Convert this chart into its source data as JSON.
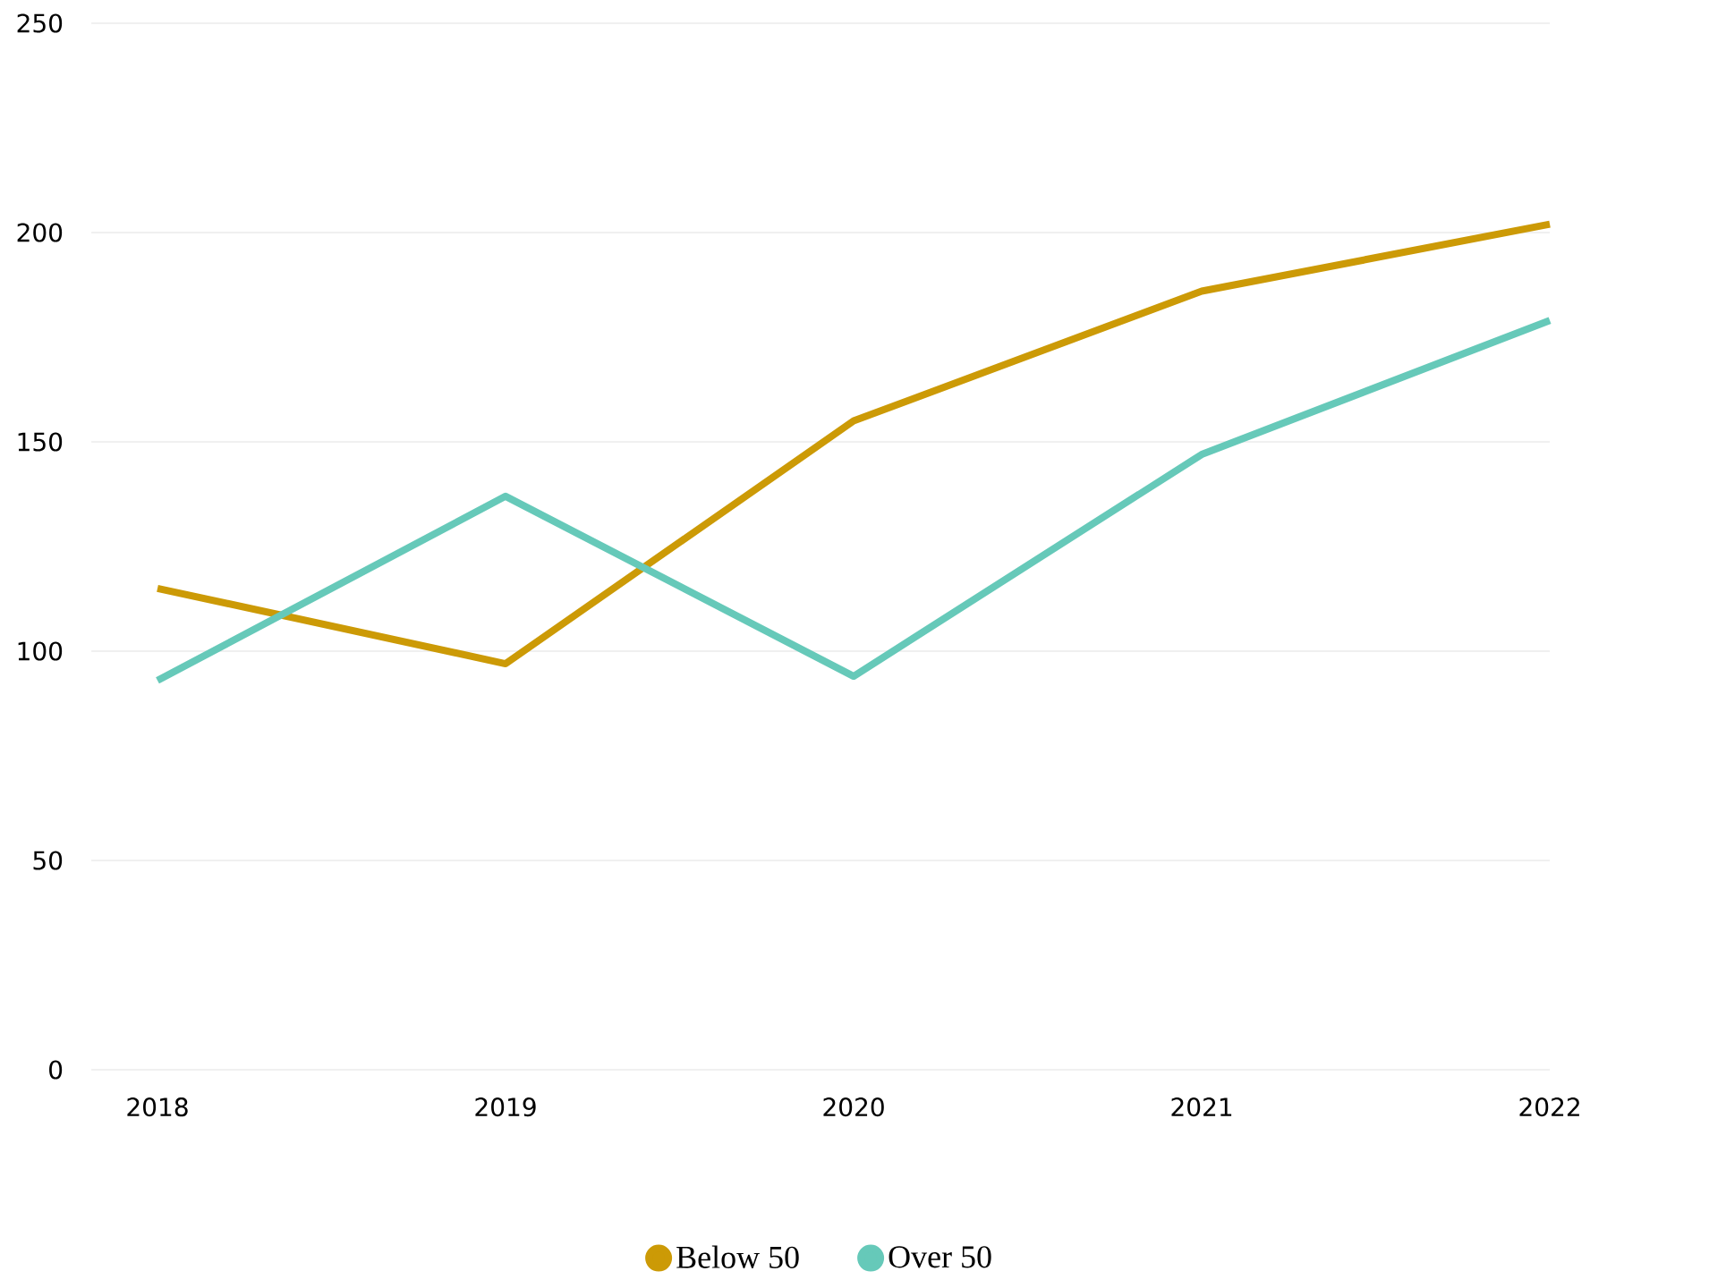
{
  "chart_data": {
    "type": "line",
    "categories": [
      "2018",
      "2019",
      "2020",
      "2021",
      "2022"
    ],
    "series": [
      {
        "name": "Below 50",
        "color": "#cc9a06",
        "values": [
          115,
          97,
          155,
          186,
          202
        ]
      },
      {
        "name": "Over 50",
        "color": "#66c9b9",
        "values": [
          93,
          137,
          94,
          147,
          179
        ]
      }
    ],
    "ylim": [
      0,
      250
    ],
    "yticks": [
      0,
      50,
      100,
      150,
      200,
      250
    ],
    "grid": "y",
    "legend": "bottom",
    "marker": "none",
    "line_style": "solid"
  }
}
